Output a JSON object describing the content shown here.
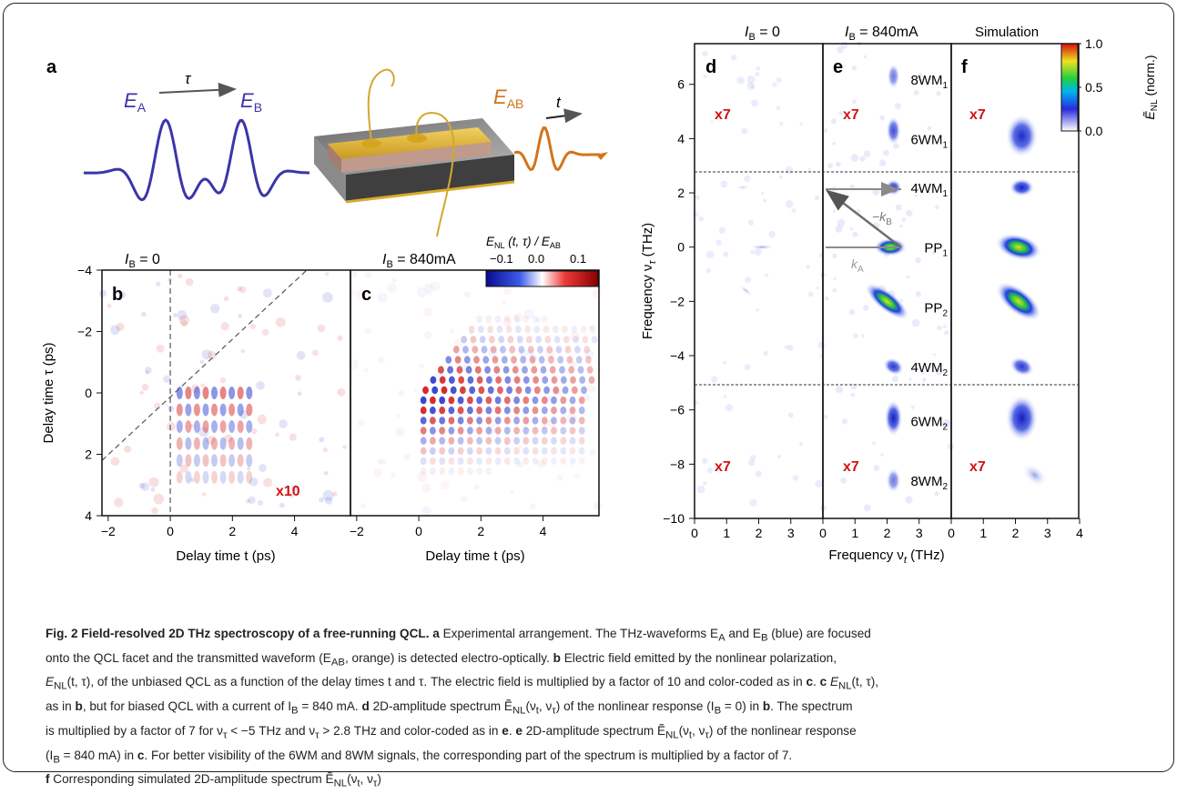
{
  "panel_a": {
    "letter": "a",
    "label_EA": "E",
    "label_EA_sub": "A",
    "label_EB": "E",
    "label_EB_sub": "B",
    "label_tau": "τ",
    "label_EAB": "E",
    "label_EAB_sub": "AB",
    "label_t": "t"
  },
  "panel_b": {
    "letter": "b",
    "header_I": "I",
    "header_sub": "B",
    "header_value": " = 0",
    "multiplier": "x10"
  },
  "panel_c": {
    "letter": "c",
    "header_I": "I",
    "header_sub": "B",
    "header_value": " = 840mA"
  },
  "colorbar_bc": {
    "title_E": "E",
    "title_sub": "NL",
    "title_rest": " (t, τ) / E",
    "title_sub2": "AB",
    "ticks": [
      "−0.1",
      "0.0",
      "0.1"
    ]
  },
  "bc_axes": {
    "xlabel": "Delay time t (ps)",
    "ylabel": "Delay time τ (ps)",
    "x_ticks_b": [
      "−2",
      "0",
      "2",
      "4"
    ],
    "x_ticks_c": [
      "−2",
      "0",
      "2",
      "4"
    ],
    "y_ticks": [
      "−4",
      "−2",
      "0",
      "2",
      "4"
    ]
  },
  "panel_d": {
    "letter": "d",
    "header_I": "I",
    "header_sub": "B",
    "header_value": " = 0",
    "mult_top": "x7",
    "mult_bottom": "x7"
  },
  "panel_e": {
    "letter": "e",
    "header_I": "I",
    "header_sub": "B",
    "header_value": " = 840mA",
    "mult_top": "x7",
    "mult_bottom": "x7",
    "peaks": [
      {
        "main": "8WM",
        "sub": "1"
      },
      {
        "main": "6WM",
        "sub": "1"
      },
      {
        "main": "4WM",
        "sub": "1"
      },
      {
        "main": "PP",
        "sub": "1"
      },
      {
        "main": "PP",
        "sub": "2"
      },
      {
        "main": "4WM",
        "sub": "2"
      },
      {
        "main": "6WM",
        "sub": "2"
      },
      {
        "main": "8WM",
        "sub": "2"
      }
    ],
    "vec_kB": "−k",
    "vec_kB_sub": "B",
    "vec_kA": "k",
    "vec_kA_sub": "A"
  },
  "panel_f": {
    "letter": "f",
    "header": "Simulation",
    "mult_top": "x7",
    "mult_bottom": "x7"
  },
  "colorbar_def": {
    "ticks": [
      "1.0",
      "0.5",
      "0.0"
    ],
    "label_E": "Ẽ",
    "label_sub": "NL",
    "label_rest": " (norm.)"
  },
  "def_axes": {
    "xlabel_main": "Frequency ν",
    "xlabel_sub": "t",
    "xlabel_unit": " (THz)",
    "ylabel_main": "Frequency ν",
    "ylabel_sub": "τ",
    "ylabel_unit": " (THz)",
    "y_ticks": [
      "6",
      "4",
      "2",
      "0",
      "−2",
      "−4",
      "−6",
      "−8",
      "−10"
    ],
    "x_ticks": [
      "0",
      "1",
      "2",
      "3",
      "0",
      "1",
      "2",
      "3",
      "0",
      "1",
      "2",
      "3",
      "4"
    ]
  },
  "caption": {
    "title": "Fig. 2 Field-resolved 2D THz spectroscopy of a free-running QCL.",
    "line1_a": "a",
    "line1_rest": " Experimental arrangement. The THz-waveforms E",
    "line1_A": "A",
    "line1_and": " and E",
    "line1_B": "B",
    "line1_end": " (blue) are focused",
    "line2": "onto the QCL facet and the transmitted waveform (E",
    "line2_AB": "AB",
    "line2_mid": ", orange) is detected electro-optically. ",
    "line2_b": "b",
    "line2_end": " Electric field emitted by the nonlinear polarization,",
    "line3_E": "E",
    "line3_NL": "NL",
    "line3_rest": "(t, τ), of the unbiased QCL as a function of the delay times t and τ. The electric field is multiplied by a factor of 10 and color-coded as in ",
    "line3_c": "c",
    "line3_dot": ". ",
    "line3_c2": "c",
    "line3_E2": " E",
    "line3_NL2": "NL",
    "line3_end": "(t, τ),",
    "line4_as": "as in ",
    "line4_b": "b",
    "line4_rest": ", but for biased QCL with a current of I",
    "line4_B": "B",
    "line4_mid": " = 840 mA. ",
    "line4_d": "d",
    "line4_spec": " 2D-amplitude spectrum Ẽ",
    "line4_NL": "NL",
    "line4_args": "(ν",
    "line4_t": "t",
    "line4_comma": ", ν",
    "line4_tau": "τ",
    "line4_close": ") of the nonlinear response (I",
    "line4_B2": "B",
    "line4_eq": " = 0) in ",
    "line4_b2": "b",
    "line4_end": ". The spectrum",
    "line5_a": "is multiplied by a factor of 7 for ν",
    "line5_tau": "τ",
    "line5_b": " < −5 THz and ν",
    "line5_tau2": "τ",
    "line5_c": " > 2.8 THz and color-coded as in ",
    "line5_e": "e",
    "line5_dot": ". ",
    "line5_e2": "e",
    "line5_spec": " 2D-amplitude spectrum Ẽ",
    "line5_NL": "NL",
    "line5_args": "(ν",
    "line5_t": "t",
    "line5_comma": ", ν",
    "line5_tau3": "τ",
    "line5_end": ") of the nonlinear response",
    "line6_a": "(I",
    "line6_B": "B",
    "line6_b": " = 840 mA) in ",
    "line6_c": "c",
    "line6_rest": ". For better visibility of the 6WM and 8WM signals, the corresponding part of the spectrum is multiplied by a factor of 7.",
    "line7_f": "f",
    "line7_rest": " Corresponding simulated 2D-amplitude spectrum Ẽ",
    "line7_NL": "NL",
    "line7_args": "(ν",
    "line7_t": "t",
    "line7_comma": ", ν",
    "line7_tau": "τ",
    "line7_close": ")"
  },
  "colors": {
    "pulse_blue": "#3b35a8",
    "pulse_orange": "#d2741a",
    "gold": "#e2b83a",
    "mult_red": "#d11414",
    "map_blue": "#2a3fd0",
    "map_red": "#d42020"
  }
}
